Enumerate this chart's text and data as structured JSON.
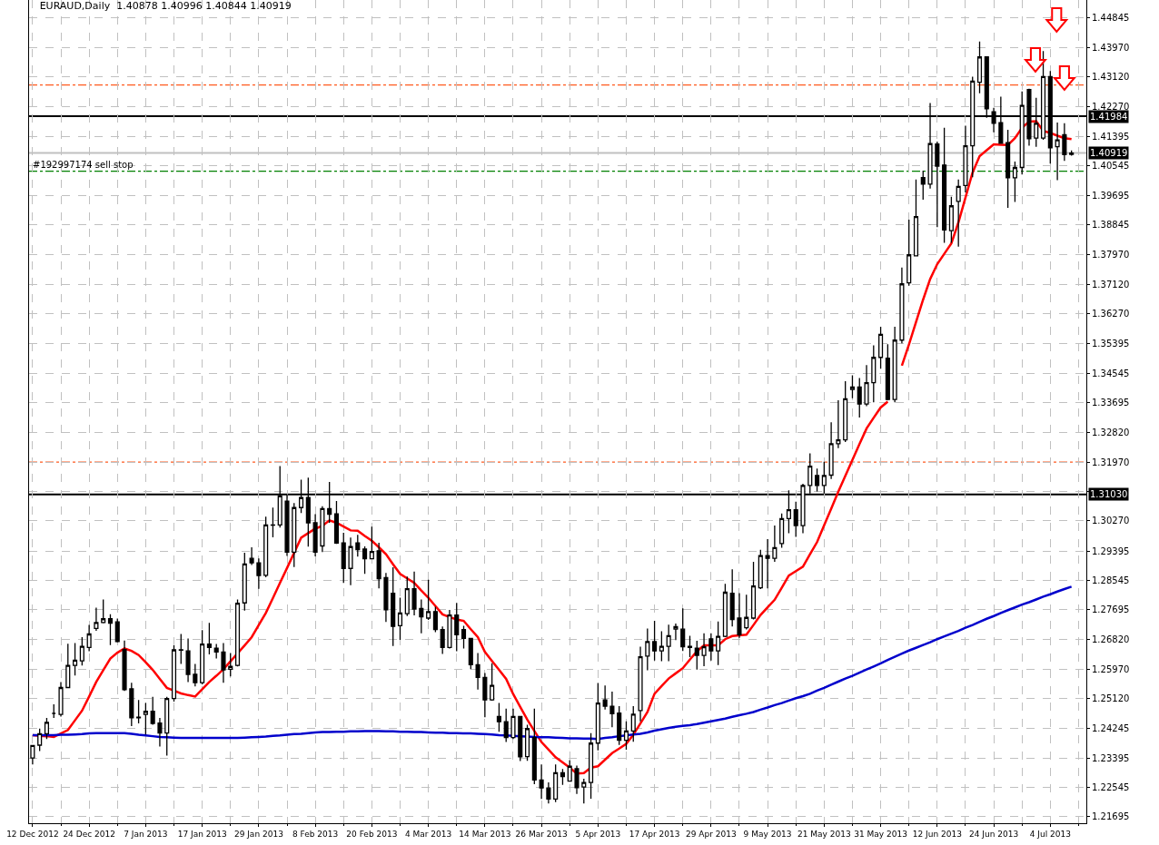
{
  "chart_data": {
    "type": "candlestick",
    "title": "EURAUD,Daily  1.40878 1.40996 1.40844 1.40919",
    "categories": [
      "12 Dec 2012",
      null,
      null,
      null,
      null,
      null,
      null,
      null,
      "24 Dec 2012",
      null,
      null,
      null,
      null,
      null,
      null,
      null,
      "7 Jan 2013",
      null,
      null,
      null,
      null,
      null,
      null,
      null,
      "17 Jan 2013",
      null,
      null,
      null,
      null,
      null,
      null,
      null,
      "29 Jan 2013",
      null,
      null,
      null,
      null,
      null,
      null,
      null,
      "8 Feb 2013",
      null,
      null,
      null,
      null,
      null,
      null,
      null,
      "20 Feb 2013",
      null,
      null,
      null,
      null,
      null,
      null,
      null,
      "4 Mar 2013",
      null,
      null,
      null,
      null,
      null,
      null,
      null,
      "14 Mar 2013",
      null,
      null,
      null,
      null,
      null,
      null,
      null,
      "26 Mar 2013",
      null,
      null,
      null,
      null,
      null,
      null,
      null,
      "5 Apr 2013",
      null,
      null,
      null,
      null,
      null,
      null,
      null,
      "17 Apr 2013",
      null,
      null,
      null,
      null,
      null,
      null,
      null,
      "29 Apr 2013",
      null,
      null,
      null,
      null,
      null,
      null,
      null,
      "9 May 2013",
      null,
      null,
      null,
      null,
      null,
      null,
      null,
      "21 May 2013",
      null,
      null,
      null,
      null,
      null,
      null,
      null,
      "31 May 2013",
      null,
      null,
      null,
      null,
      null,
      null,
      null,
      "12 Jun 2013",
      null,
      null,
      null,
      null,
      null,
      null,
      null,
      "24 Jun 2013",
      null,
      null,
      null,
      null,
      null,
      null,
      null,
      "4 Jul 2013",
      null,
      null,
      null
    ],
    "ohlc": [
      [
        1.234,
        1.2378,
        1.2321,
        1.2376
      ],
      [
        1.2377,
        1.2425,
        1.236,
        1.241
      ],
      [
        1.241,
        1.2456,
        1.2395,
        1.2443
      ],
      [
        1.2469,
        1.2495,
        1.2456,
        1.2469
      ],
      [
        1.2466,
        1.256,
        1.246,
        1.2544
      ],
      [
        1.2544,
        1.2671,
        1.2542,
        1.2608
      ],
      [
        1.2608,
        1.2673,
        1.2579,
        1.2623
      ],
      [
        1.2621,
        1.269,
        1.2608,
        1.2663
      ],
      [
        1.266,
        1.2725,
        1.2649,
        1.2699
      ],
      [
        1.2715,
        1.2775,
        1.2708,
        1.2732
      ],
      [
        1.2732,
        1.2799,
        1.273,
        1.2743
      ],
      [
        1.2743,
        1.2756,
        1.2667,
        1.273
      ],
      [
        1.2734,
        1.2744,
        1.2675,
        1.2677
      ],
      [
        1.2654,
        1.268,
        1.2534,
        1.2538
      ],
      [
        1.254,
        1.2558,
        1.2432,
        1.2456
      ],
      [
        1.2458,
        1.2508,
        1.244,
        1.2456
      ],
      [
        1.2466,
        1.2499,
        1.2408,
        1.2475
      ],
      [
        1.2475,
        1.2517,
        1.2436,
        1.244
      ],
      [
        1.2441,
        1.2456,
        1.2373,
        1.2412
      ],
      [
        1.2412,
        1.2517,
        1.2347,
        1.2512
      ],
      [
        1.2512,
        1.2666,
        1.2503,
        1.2653
      ],
      [
        1.2653,
        1.2699,
        1.2612,
        1.2652
      ],
      [
        1.265,
        1.2686,
        1.256,
        1.2582
      ],
      [
        1.2582,
        1.2612,
        1.2547,
        1.2558
      ],
      [
        1.2558,
        1.271,
        1.2553,
        1.267
      ],
      [
        1.267,
        1.2731,
        1.264,
        1.266
      ],
      [
        1.2658,
        1.267,
        1.2628,
        1.2647
      ],
      [
        1.2647,
        1.2673,
        1.2558,
        1.2595
      ],
      [
        1.2597,
        1.2644,
        1.2576,
        1.2605
      ],
      [
        1.2608,
        1.2799,
        1.2605,
        1.2788
      ],
      [
        1.2789,
        1.2934,
        1.2767,
        1.2902
      ],
      [
        1.2918,
        1.295,
        1.2899,
        1.2905
      ],
      [
        1.2905,
        1.2918,
        1.283,
        1.2868
      ],
      [
        1.2869,
        1.3039,
        1.2863,
        1.3015
      ],
      [
        1.3015,
        1.3065,
        1.2979,
        1.3014
      ],
      [
        1.3015,
        1.3185,
        1.3007,
        1.3099
      ],
      [
        1.3084,
        1.3104,
        1.2925,
        1.2936
      ],
      [
        1.2936,
        1.3078,
        1.2893,
        1.3065
      ],
      [
        1.3065,
        1.3146,
        1.3049,
        1.3094
      ],
      [
        1.3094,
        1.3152,
        1.2952,
        1.3021
      ],
      [
        1.3021,
        1.3046,
        1.2924,
        1.2936
      ],
      [
        1.2954,
        1.3069,
        1.2936,
        1.3062
      ],
      [
        1.3062,
        1.3139,
        1.3021,
        1.3046
      ],
      [
        1.3047,
        1.3084,
        1.296,
        1.2962
      ],
      [
        1.2963,
        1.2992,
        1.2847,
        1.2889
      ],
      [
        1.2889,
        1.2978,
        1.284,
        1.2952
      ],
      [
        1.2963,
        1.2986,
        1.2923,
        1.2943
      ],
      [
        1.2945,
        1.2953,
        1.2873,
        1.2917
      ],
      [
        1.2917,
        1.301,
        1.2915,
        1.2938
      ],
      [
        1.294,
        1.2963,
        1.2831,
        1.2859
      ],
      [
        1.2862,
        1.2876,
        1.2734,
        1.2769
      ],
      [
        1.2817,
        1.2892,
        1.2664,
        1.2721
      ],
      [
        1.2723,
        1.2804,
        1.2682,
        1.276
      ],
      [
        1.2758,
        1.2865,
        1.2751,
        1.283
      ],
      [
        1.283,
        1.288,
        1.2753,
        1.2771
      ],
      [
        1.2773,
        1.2799,
        1.2701,
        1.2749
      ],
      [
        1.2745,
        1.2856,
        1.274,
        1.2764
      ],
      [
        1.2764,
        1.2778,
        1.2704,
        1.2712
      ],
      [
        1.2712,
        1.2721,
        1.2641,
        1.266
      ],
      [
        1.266,
        1.2769,
        1.2657,
        1.2754
      ],
      [
        1.2754,
        1.2789,
        1.2649,
        1.2697
      ],
      [
        1.2712,
        1.2723,
        1.2657,
        1.2686
      ],
      [
        1.2686,
        1.2687,
        1.2597,
        1.261
      ],
      [
        1.261,
        1.2644,
        1.2538,
        1.2573
      ],
      [
        1.2573,
        1.2586,
        1.2458,
        1.2508
      ],
      [
        1.2508,
        1.2614,
        1.2506,
        1.255
      ],
      [
        1.246,
        1.2499,
        1.2416,
        1.2445
      ],
      [
        1.2445,
        1.2483,
        1.2386,
        1.2399
      ],
      [
        1.2399,
        1.2483,
        1.2395,
        1.246
      ],
      [
        1.246,
        1.2461,
        1.2331,
        1.2343
      ],
      [
        1.2344,
        1.2436,
        1.2332,
        1.2425
      ],
      [
        1.2399,
        1.2483,
        1.2264,
        1.2276
      ],
      [
        1.2276,
        1.2321,
        1.2221,
        1.2253
      ],
      [
        1.2253,
        1.2269,
        1.2208,
        1.2221
      ],
      [
        1.2221,
        1.2321,
        1.2212,
        1.2297
      ],
      [
        1.2297,
        1.2308,
        1.2262,
        1.2286
      ],
      [
        1.2273,
        1.2334,
        1.2271,
        1.2316
      ],
      [
        1.2309,
        1.2318,
        1.2236,
        1.2254
      ],
      [
        1.2256,
        1.228,
        1.2208,
        1.2269
      ],
      [
        1.2269,
        1.2412,
        1.2222,
        1.2383
      ],
      [
        1.2383,
        1.2557,
        1.2362,
        1.2499
      ],
      [
        1.2508,
        1.255,
        1.248,
        1.249
      ],
      [
        1.249,
        1.2532,
        1.2429,
        1.2468
      ],
      [
        1.247,
        1.249,
        1.2378,
        1.2391
      ],
      [
        1.2391,
        1.2446,
        1.2364,
        1.2418
      ],
      [
        1.2418,
        1.249,
        1.2387,
        1.2467
      ],
      [
        1.2477,
        1.2662,
        1.2446,
        1.2633
      ],
      [
        1.2635,
        1.2715,
        1.2594,
        1.2677
      ],
      [
        1.2677,
        1.2737,
        1.2622,
        1.265
      ],
      [
        1.265,
        1.2707,
        1.262,
        1.2663
      ],
      [
        1.2663,
        1.2726,
        1.262,
        1.2694
      ],
      [
        1.2713,
        1.2729,
        1.2681,
        1.272
      ],
      [
        1.2713,
        1.2773,
        1.265,
        1.2662
      ],
      [
        1.2663,
        1.2694,
        1.2632,
        1.266
      ],
      [
        1.2658,
        1.2679,
        1.2596,
        1.2637
      ],
      [
        1.2637,
        1.2701,
        1.2606,
        1.2662
      ],
      [
        1.2685,
        1.2701,
        1.2622,
        1.265
      ],
      [
        1.265,
        1.2735,
        1.2609,
        1.2692
      ],
      [
        1.2692,
        1.2844,
        1.269,
        1.282
      ],
      [
        1.2817,
        1.2886,
        1.2721,
        1.2741
      ],
      [
        1.2745,
        1.2817,
        1.2688,
        1.2697
      ],
      [
        1.2717,
        1.2813,
        1.2712,
        1.2747
      ],
      [
        1.2745,
        1.2908,
        1.2741,
        1.2838
      ],
      [
        1.2833,
        1.2943,
        1.2829,
        1.2926
      ],
      [
        1.2926,
        1.2974,
        1.2831,
        1.2918
      ],
      [
        1.2918,
        1.3013,
        1.2908,
        1.2949
      ],
      [
        1.2961,
        1.3048,
        1.2949,
        1.3033
      ],
      [
        1.3033,
        1.3115,
        1.2991,
        1.3059
      ],
      [
        1.3059,
        1.3082,
        1.298,
        1.3013
      ],
      [
        1.3013,
        1.3134,
        1.2991,
        1.3129
      ],
      [
        1.3129,
        1.3222,
        1.3106,
        1.3185
      ],
      [
        1.3158,
        1.3178,
        1.3112,
        1.3129
      ],
      [
        1.3129,
        1.3198,
        1.3106,
        1.3158
      ],
      [
        1.3159,
        1.3312,
        1.3148,
        1.325
      ],
      [
        1.325,
        1.3376,
        1.3237,
        1.3261
      ],
      [
        1.3261,
        1.3431,
        1.3255,
        1.338
      ],
      [
        1.3407,
        1.3448,
        1.3382,
        1.3414
      ],
      [
        1.3414,
        1.344,
        1.3326,
        1.3365
      ],
      [
        1.3365,
        1.3478,
        1.3359,
        1.3427
      ],
      [
        1.3427,
        1.3535,
        1.337,
        1.35
      ],
      [
        1.35,
        1.3589,
        1.3467,
        1.3567
      ],
      [
        1.3498,
        1.3538,
        1.3376,
        1.3378
      ],
      [
        1.3378,
        1.3589,
        1.337,
        1.355
      ],
      [
        1.355,
        1.376,
        1.3541,
        1.3713
      ],
      [
        1.3716,
        1.3899,
        1.3708,
        1.3797
      ],
      [
        1.3794,
        1.4015,
        1.3793,
        1.3908
      ],
      [
        1.4021,
        1.4041,
        1.3957,
        1.4002
      ],
      [
        1.4002,
        1.4237,
        1.3989,
        1.4119
      ],
      [
        1.4118,
        1.4125,
        1.3877,
        1.4054
      ],
      [
        1.4057,
        1.4165,
        1.3832,
        1.3869
      ],
      [
        1.3867,
        1.3965,
        1.3832,
        1.3939
      ],
      [
        1.3952,
        1.4015,
        1.3821,
        1.3995
      ],
      [
        1.3998,
        1.4171,
        1.3978,
        1.4113
      ],
      [
        1.4113,
        1.4313,
        1.4022,
        1.43
      ],
      [
        1.4297,
        1.4415,
        1.4265,
        1.437
      ],
      [
        1.437,
        1.4372,
        1.4194,
        1.422
      ],
      [
        1.4211,
        1.4223,
        1.4152,
        1.4178
      ],
      [
        1.418,
        1.4255,
        1.4119,
        1.412
      ],
      [
        1.4122,
        1.4159,
        1.3933,
        1.402
      ],
      [
        1.402,
        1.4067,
        1.395,
        1.405
      ],
      [
        1.405,
        1.427,
        1.403,
        1.423
      ],
      [
        1.4276,
        1.4278,
        1.4113,
        1.4133
      ],
      [
        1.4135,
        1.4252,
        1.411,
        1.4178
      ],
      [
        1.4135,
        1.4387,
        1.413,
        1.4313
      ],
      [
        1.4313,
        1.4329,
        1.4061,
        1.4107
      ],
      [
        1.411,
        1.418,
        1.4013,
        1.413
      ],
      [
        1.4145,
        1.4178,
        1.4069,
        1.4087
      ],
      [
        1.40878,
        1.40996,
        1.40844,
        1.40919
      ]
    ],
    "series": [
      {
        "type": "line",
        "color": "#ff0000",
        "values": [
          1.2406,
          1.2404,
          1.2403,
          1.2401,
          1.2411,
          1.2421,
          1.2449,
          1.2477,
          1.2518,
          1.256,
          1.2594,
          1.2628,
          1.2645,
          1.2657,
          1.265,
          1.2638,
          1.2617,
          1.2595,
          1.2569,
          1.2543,
          1.2535,
          1.2527,
          1.2522,
          1.2518,
          1.2539,
          1.256,
          1.2578,
          1.2597,
          1.262,
          1.2643,
          1.2666,
          1.269,
          1.2725,
          1.276,
          1.2803,
          1.2847,
          1.289,
          1.2934,
          1.2978,
          1.2991,
          1.3004,
          1.3012,
          1.3028,
          1.3021,
          1.301,
          1.2999,
          1.2998,
          1.2983,
          1.2969,
          1.295,
          1.293,
          1.2901,
          1.2873,
          1.286,
          1.2847,
          1.2825,
          1.2804,
          1.278,
          1.2756,
          1.2748,
          1.2741,
          1.2737,
          1.2713,
          1.269,
          1.2647,
          1.2621,
          1.2595,
          1.2569,
          1.2525,
          1.2488,
          1.2451,
          1.2418,
          1.2386,
          1.2364,
          1.2342,
          1.2327,
          1.2312,
          1.2295,
          1.2296,
          1.2312,
          1.2316,
          1.2335,
          1.2354,
          1.2367,
          1.2381,
          1.2407,
          1.244,
          1.2473,
          1.2526,
          1.2548,
          1.257,
          1.2585,
          1.26,
          1.2625,
          1.2649,
          1.2666,
          1.2666,
          1.2666,
          1.2684,
          1.2693,
          1.2695,
          1.2697,
          1.2725,
          1.2754,
          1.2776,
          1.2798,
          1.2833,
          1.2868,
          1.2881,
          1.2894,
          1.293,
          1.2965,
          1.3014,
          1.3062,
          1.3111,
          1.3157,
          1.3203,
          1.3249,
          1.3294,
          1.3325,
          1.3355,
          1.3372,
          null,
          1.3476,
          1.3537,
          1.3602,
          1.3667,
          1.3727,
          1.377,
          1.38,
          1.383,
          1.3891,
          1.3963,
          1.4035,
          1.4083,
          1.41,
          1.4117,
          1.4116,
          1.4115,
          1.4135,
          1.4165,
          1.4183,
          1.4184,
          1.4156,
          1.415,
          1.4142,
          1.4135,
          1.4132
        ]
      },
      {
        "type": "line",
        "color": "#0000cc",
        "values": [
          1.2406,
          1.2406,
          1.2406,
          1.2406,
          1.2407,
          1.2407,
          1.2408,
          1.2409,
          1.2411,
          1.2412,
          1.2412,
          1.2412,
          1.2412,
          1.2412,
          1.241,
          1.2407,
          1.2405,
          1.2403,
          1.2401,
          1.24,
          1.2399,
          1.2398,
          1.2398,
          1.2398,
          1.2398,
          1.2398,
          1.2398,
          1.2398,
          1.2398,
          1.2398,
          1.2399,
          1.24,
          1.2401,
          1.2402,
          1.2404,
          1.2405,
          1.2407,
          1.2409,
          1.241,
          1.2412,
          1.2414,
          1.2415,
          1.2415,
          1.2416,
          1.2416,
          1.2417,
          1.2417,
          1.2418,
          1.2418,
          1.2418,
          1.2417,
          1.2417,
          1.2416,
          1.2416,
          1.2415,
          1.2415,
          1.2414,
          1.2413,
          1.2413,
          1.2412,
          1.2412,
          1.2411,
          1.2411,
          1.241,
          1.2409,
          1.2408,
          1.2406,
          1.2405,
          1.2404,
          1.2403,
          1.2402,
          1.2401,
          1.24,
          1.24,
          1.2399,
          1.2398,
          1.2397,
          1.2397,
          1.2396,
          1.2396,
          1.2395,
          1.2398,
          1.24,
          1.2403,
          1.2405,
          1.2408,
          1.241,
          1.2414,
          1.2419,
          1.2423,
          1.2427,
          1.243,
          1.2433,
          1.2435,
          1.2438,
          1.2442,
          1.2446,
          1.245,
          1.2454,
          1.2459,
          1.2464,
          1.2468,
          1.2473,
          1.248,
          1.2486,
          1.2493,
          1.2499,
          1.2506,
          1.2513,
          1.2519,
          1.2526,
          1.2535,
          1.2543,
          1.2552,
          1.2561,
          1.257,
          1.2578,
          1.2587,
          1.2596,
          1.2605,
          1.2614,
          1.2624,
          1.2633,
          1.2642,
          1.2651,
          1.2659,
          1.2667,
          1.2675,
          1.2684,
          1.2692,
          1.27,
          1.2708,
          1.2717,
          1.2725,
          1.2734,
          1.2743,
          1.2751,
          1.276,
          1.2768,
          1.2776,
          1.2784,
          1.2791,
          1.2799,
          1.2807,
          1.2814,
          1.2822,
          1.2829,
          1.2836
        ]
      }
    ],
    "ylim": [
      1.2151,
      1.4535
    ],
    "yticks": [
      1.44845,
      {
        "value": 1.4397,
        "label": "1.43970"
      },
      {
        "value": 1.4312,
        "label": "1.43120"
      },
      {
        "value": 1.4227,
        "label": "1.42270"
      },
      1.41395,
      1.40545,
      1.39695,
      1.38845,
      {
        "value": 1.3797,
        "label": "1.37970"
      },
      {
        "value": 1.3712,
        "label": "1.37120"
      },
      {
        "value": 1.3627,
        "label": "1.36270"
      },
      1.35395,
      1.34545,
      1.33695,
      {
        "value": 1.3282,
        "label": "1.32820"
      },
      {
        "value": 1.3197,
        "label": "1.31970"
      },
      {
        "value": 1.3112,
        "label": null
      },
      {
        "value": 1.3027,
        "label": "1.30270"
      },
      1.29395,
      1.28545,
      1.27695,
      {
        "value": 1.2682,
        "label": "1.26820"
      },
      {
        "value": 1.2597,
        "label": "1.25970"
      },
      {
        "value": 1.2512,
        "label": "1.25120"
      },
      1.24245,
      1.23395,
      1.22545,
      1.21695
    ],
    "ref_lines": [
      {
        "axis": "y",
        "value": 1.4289,
        "color": "#ff5a1f",
        "line_style": "dashed"
      },
      {
        "axis": "y",
        "value": 1.41984,
        "label": "1.41984",
        "color": "#000000",
        "line_style": "solid"
      },
      {
        "axis": "y",
        "value": 1.40919,
        "label": "1.40919",
        "color": "#c0c0c0",
        "line_style": "solid"
      },
      {
        "axis": "y",
        "value": 1.4039,
        "label": "#192997174 sell stop",
        "color": "#008000",
        "line_style": "dashed"
      },
      {
        "axis": "y",
        "value": 1.3197,
        "color": "#ff5a1f",
        "line_style": "dashed"
      },
      {
        "axis": "y",
        "value": 1.3103,
        "label": "1.31030",
        "color": "#000000",
        "line_style": "solid"
      }
    ],
    "grid": true
  }
}
